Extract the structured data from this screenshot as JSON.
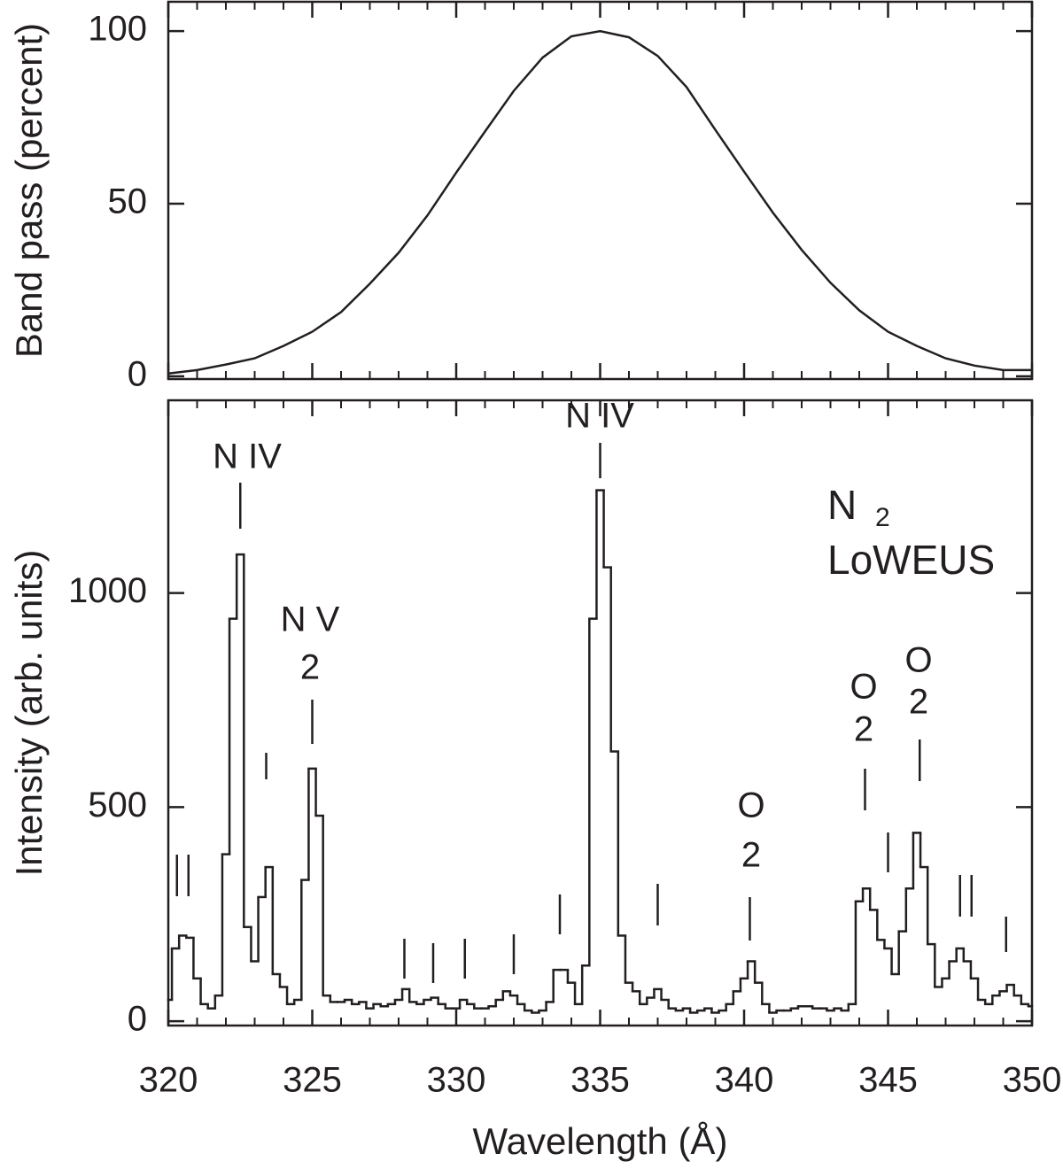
{
  "chart_data": [
    {
      "type": "line",
      "ylabel": "Band pass (percent)",
      "x": [
        320,
        321,
        322,
        323,
        324,
        325,
        326,
        327,
        328,
        329,
        330,
        331,
        332,
        333,
        334,
        335,
        336,
        337,
        338,
        339,
        340,
        341,
        342,
        343,
        344,
        345,
        346,
        347,
        348,
        349,
        350
      ],
      "values": [
        0.8,
        1.8,
        3.4,
        5.2,
        8.8,
        12.9,
        18.6,
        26.8,
        35.8,
        46.6,
        59.0,
        70.9,
        82.7,
        92.3,
        98.5,
        100,
        98.2,
        92.8,
        83.8,
        71.4,
        59.3,
        47.4,
        36.6,
        27.1,
        19.1,
        12.9,
        8.8,
        5.2,
        3.1,
        1.8,
        1.8
      ],
      "color": "#231f20",
      "xlim": [
        320,
        350
      ],
      "xticks": [
        320,
        325,
        330,
        335,
        340,
        345,
        350
      ],
      "ylim": [
        -0.8,
        108.5
      ],
      "yticks": [
        0,
        50,
        100
      ]
    },
    {
      "type": "step",
      "xlabel": "Wavelength (Å)",
      "ylabel": "Intensity (arb. units)",
      "x": [
        320,
        320.25,
        320.5,
        320.75,
        321,
        321.25,
        321.5,
        321.75,
        322,
        322.25,
        322.5,
        322.75,
        323,
        323.25,
        323.5,
        323.75,
        324,
        324.25,
        324.5,
        324.75,
        325,
        325.25,
        325.5,
        325.75,
        326,
        326.25,
        326.5,
        326.75,
        327,
        327.25,
        327.5,
        327.75,
        328,
        328.25,
        328.5,
        328.75,
        329,
        329.25,
        329.5,
        329.75,
        330,
        330.25,
        330.5,
        330.75,
        331,
        331.25,
        331.5,
        331.75,
        332,
        332.25,
        332.5,
        332.75,
        333,
        333.25,
        333.5,
        333.75,
        334,
        334.25,
        334.5,
        334.75,
        335,
        335.25,
        335.5,
        335.75,
        336,
        336.25,
        336.5,
        336.75,
        337,
        337.25,
        337.5,
        337.75,
        338,
        338.25,
        338.5,
        338.75,
        339,
        339.25,
        339.5,
        339.75,
        340,
        340.25,
        340.5,
        340.75,
        341,
        341.25,
        341.5,
        341.75,
        342,
        342.25,
        342.5,
        342.75,
        343,
        343.25,
        343.5,
        343.75,
        344,
        344.25,
        344.5,
        344.75,
        345,
        345.25,
        345.5,
        345.75,
        346,
        346.25,
        346.5,
        346.75,
        347,
        347.25,
        347.5,
        347.75,
        348,
        348.25,
        348.5,
        348.75,
        349,
        349.25,
        349.5,
        349.75,
        350
      ],
      "values": [
        50,
        170,
        200,
        195,
        100,
        40,
        30,
        60,
        390,
        940,
        1090,
        220,
        140,
        290,
        360,
        110,
        80,
        40,
        50,
        330,
        590,
        480,
        60,
        45,
        45,
        50,
        40,
        45,
        30,
        40,
        35,
        40,
        50,
        75,
        45,
        40,
        50,
        55,
        40,
        30,
        30,
        50,
        40,
        30,
        30,
        35,
        50,
        70,
        60,
        40,
        25,
        20,
        25,
        45,
        120,
        120,
        90,
        40,
        130,
        940,
        1240,
        1060,
        630,
        200,
        90,
        70,
        40,
        55,
        75,
        50,
        30,
        25,
        30,
        20,
        25,
        30,
        20,
        25,
        40,
        70,
        100,
        140,
        90,
        40,
        20,
        25,
        25,
        30,
        35,
        35,
        30,
        30,
        25,
        30,
        25,
        40,
        280,
        310,
        260,
        190,
        170,
        110,
        210,
        310,
        440,
        360,
        180,
        80,
        100,
        140,
        170,
        140,
        100,
        50,
        40,
        60,
        70,
        85,
        60,
        40,
        35
      ],
      "color": "#231f20",
      "xlim": [
        320,
        350
      ],
      "xticks": [
        320,
        325,
        330,
        335,
        340,
        345,
        350
      ],
      "ylim": [
        -10,
        1450
      ],
      "yticks": [
        0,
        500,
        1000
      ],
      "annotations": [
        "N IV",
        "N IV",
        "N V",
        "2",
        "O",
        "2",
        "O",
        "2",
        "O",
        "2",
        "N",
        "2",
        "LoWEUS"
      ]
    }
  ]
}
